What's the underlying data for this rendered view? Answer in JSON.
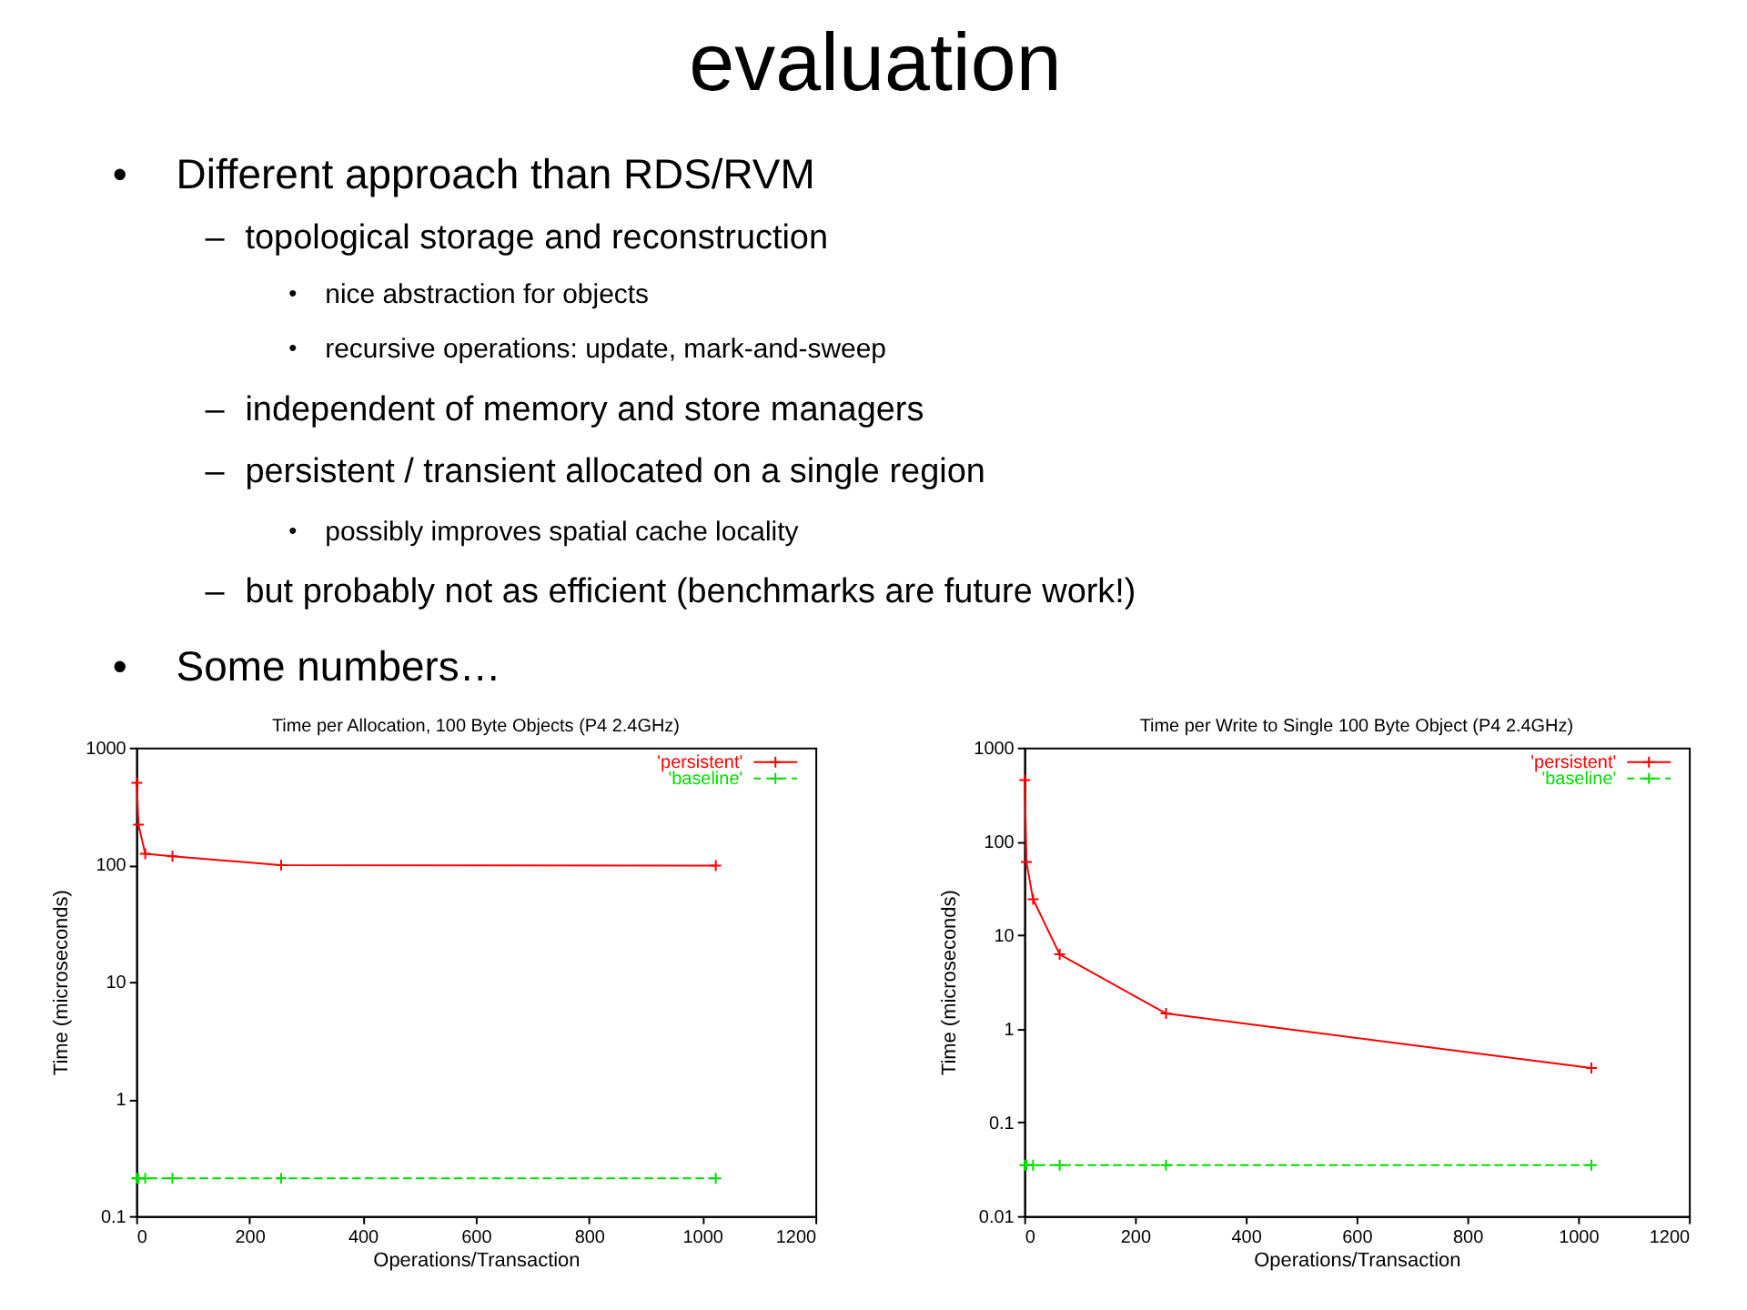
{
  "chart_data": [
    {
      "type": "other",
      "title": "evaluation",
      "annotations": [
        "• Different approach than RDS/RVM",
        "– topological storage and reconstruction",
        "• nice abstraction for objects",
        "• recursive operations: update, mark-and-sweep",
        "– independent of memory and store managers",
        "– persistent / transient allocated on a single region",
        "• possibly improves spatial cache locality",
        "– but probably not as efficient (benchmarks are future work!)",
        "• Some numbers…"
      ]
    },
    {
      "type": "line",
      "title": "Time per Allocation, 100 Byte Objects (P4 2.4GHz)",
      "xlabel": "Operations/Transaction",
      "ylabel": "Time (microseconds)",
      "log": "y",
      "xlim": [
        0,
        1200
      ],
      "xticks": [
        0,
        200,
        400,
        600,
        800,
        1000,
        1200
      ],
      "ylim": [
        0.1,
        1000
      ],
      "yticks": [
        0.1,
        1,
        10,
        100,
        1000
      ],
      "legend": "top right",
      "marker": "cross",
      "series": [
        {
          "name": "'persistent'",
          "color": "#ff0000",
          "line_style": "solid",
          "x": [
            1,
            4,
            16,
            64,
            256,
            1024
          ],
          "values": [
            500,
            220,
            124,
            118,
            99,
            98
          ]
        },
        {
          "name": "'baseline'",
          "color": "#00dd00",
          "line_style": "dashed",
          "x": [
            1,
            4,
            16,
            64,
            256,
            1024
          ],
          "values": [
            0.21,
            0.21,
            0.21,
            0.21,
            0.21,
            0.21
          ]
        }
      ]
    },
    {
      "type": "line",
      "title": "Time per Write to Single 100 Byte Object (P4 2.4GHz)",
      "xlabel": "Operations/Transaction",
      "ylabel": "Time (microseconds)",
      "log": "y",
      "xlim": [
        0,
        1200
      ],
      "xticks": [
        0,
        200,
        400,
        600,
        800,
        1000,
        1200
      ],
      "ylim": [
        0.01,
        1000
      ],
      "yticks": [
        0.01,
        0.1,
        1,
        10,
        100,
        1000
      ],
      "legend": "top right",
      "marker": "cross",
      "series": [
        {
          "name": "'persistent'",
          "color": "#ff0000",
          "line_style": "solid",
          "x": [
            1,
            4,
            16,
            64,
            256,
            1024
          ],
          "values": [
            450,
            60,
            24,
            6.2,
            1.45,
            0.38
          ]
        },
        {
          "name": "'baseline'",
          "color": "#00dd00",
          "line_style": "dashed",
          "x": [
            1,
            4,
            16,
            64,
            256,
            1024
          ],
          "values": [
            0.035,
            0.035,
            0.035,
            0.035,
            0.035,
            0.035
          ]
        }
      ]
    }
  ]
}
